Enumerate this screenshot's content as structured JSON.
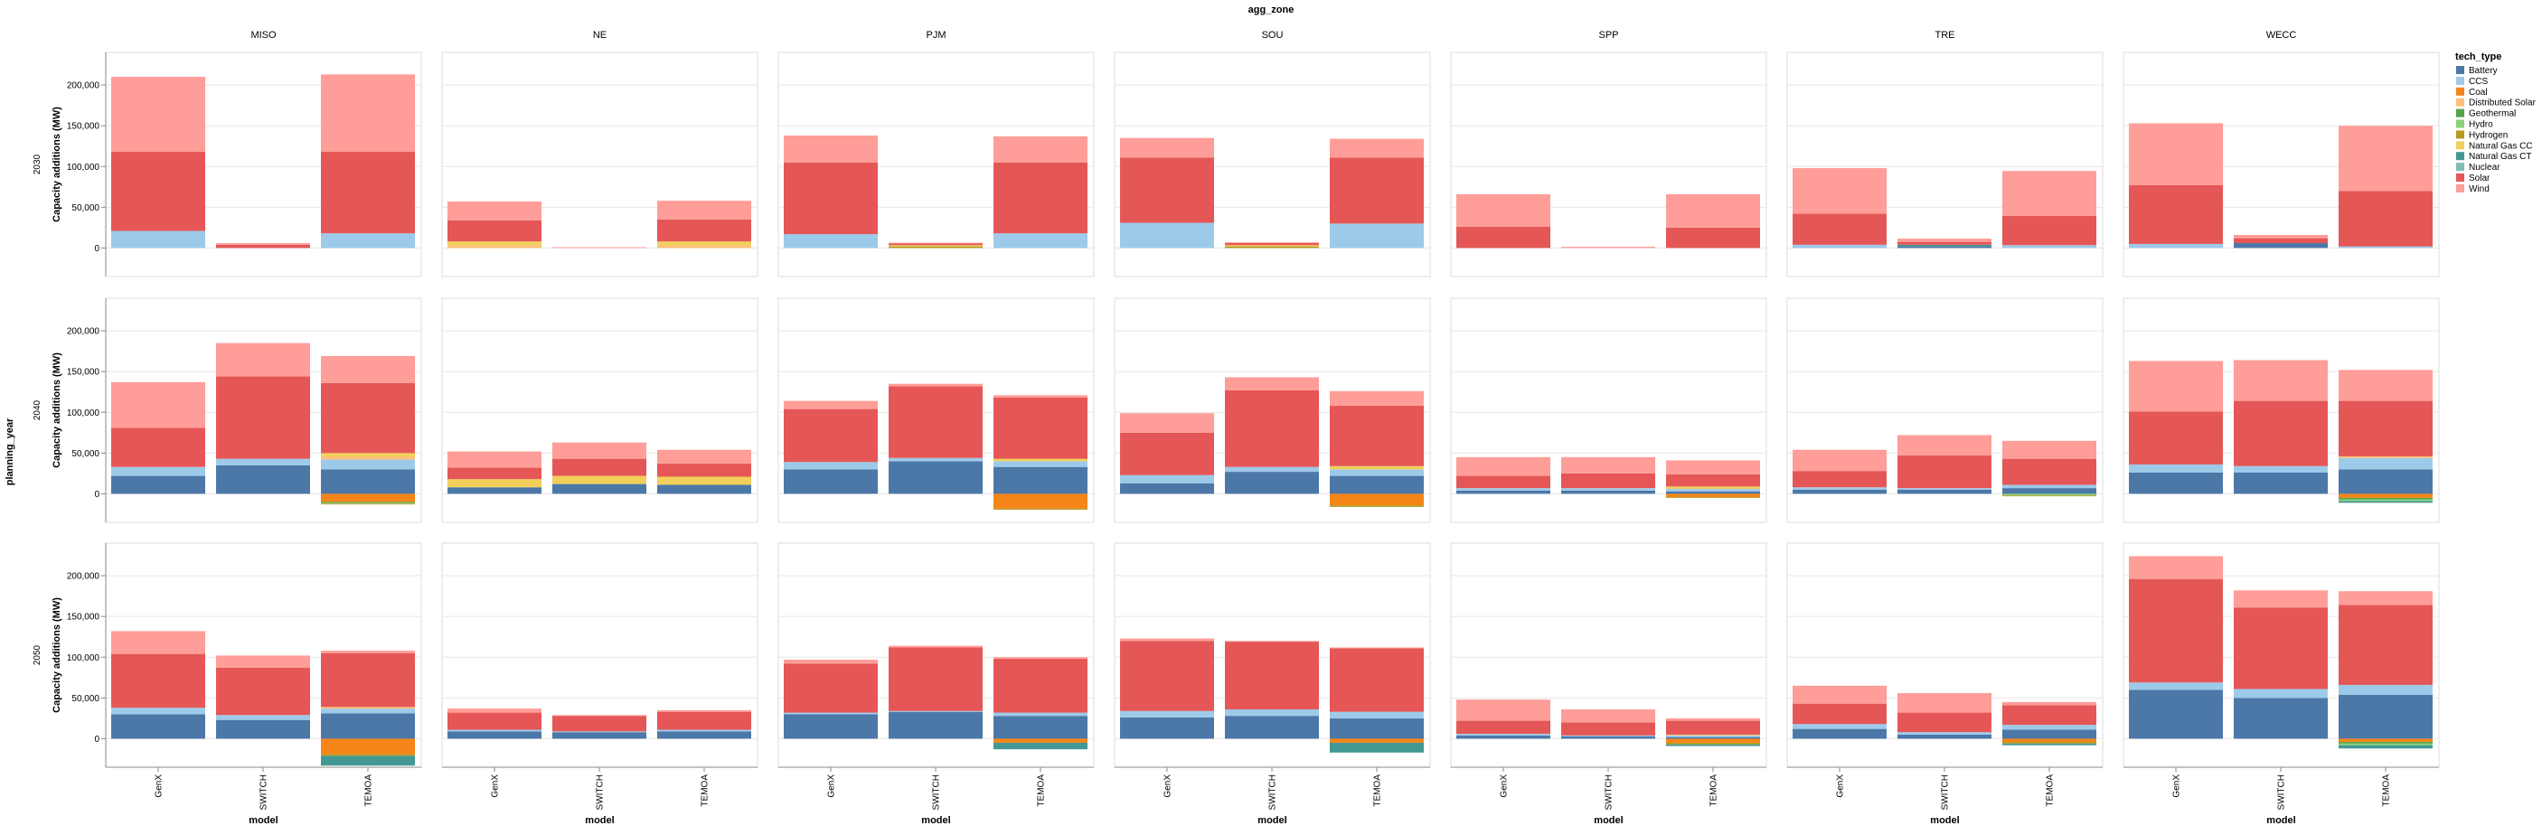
{
  "chart_data": {
    "type": "bar",
    "stacked": true,
    "facet_column_title": "agg_zone",
    "facet_row_title": "planning_year",
    "xlabel": "model",
    "ylabel": "Capacity additions (MW)",
    "ylim": [
      -35000,
      240000
    ],
    "yticks": [
      0,
      50000,
      100000,
      150000,
      200000
    ],
    "ytick_labels": [
      "0",
      "50,000",
      "100,000",
      "150,000",
      "200,000"
    ],
    "grid": true,
    "legend_placement": "right",
    "zones": [
      "MISO",
      "NE",
      "PJM",
      "SOU",
      "SPP",
      "TRE",
      "WECC"
    ],
    "years": [
      "2030",
      "2040",
      "2050"
    ],
    "models": [
      "GenX",
      "SWITCH",
      "TEMOA"
    ],
    "tech_types": [
      "Battery",
      "CCS",
      "Coal",
      "Distributed Solar",
      "Geothermal",
      "Hydro",
      "Hydrogen",
      "Natural Gas CC",
      "Natural Gas CT",
      "Nuclear",
      "Solar",
      "Wind"
    ],
    "colors": {
      "Battery": "#4c78a8",
      "CCS": "#9ecae9",
      "Coal": "#f58518",
      "Distributed Solar": "#ffbf79",
      "Geothermal": "#54a24b",
      "Hydro": "#88d27a",
      "Hydrogen": "#b79a20",
      "Natural Gas CC": "#f2cf5b",
      "Natural Gas CT": "#439894",
      "Nuclear": "#83bcb6",
      "Solar": "#e45756",
      "Wind": "#ff9d98"
    },
    "values": {
      "2030": {
        "MISO": {
          "GenX": {
            "Wind": 92000,
            "Solar": 97000,
            "CCS": 21000
          },
          "SWITCH": {
            "Wind": 2000,
            "Solar": 4000
          },
          "TEMOA": {
            "Wind": 95000,
            "Solar": 100000,
            "CCS": 18000
          }
        },
        "NE": {
          "GenX": {
            "Wind": 23000,
            "Solar": 26000,
            "Natural Gas CC": 5000,
            "Distributed Solar": 3000
          },
          "SWITCH": {
            "Wind": 1000
          },
          "TEMOA": {
            "Wind": 23000,
            "Solar": 27000,
            "Natural Gas CC": 5000,
            "Distributed Solar": 3000
          }
        },
        "PJM": {
          "GenX": {
            "Wind": 33000,
            "Solar": 88000,
            "CCS": 17000
          },
          "SWITCH": {
            "Wind": 1000,
            "Solar": 2000,
            "Hydrogen": 2000,
            "Natural Gas CC": 1500
          },
          "TEMOA": {
            "Wind": 32000,
            "Solar": 87000,
            "CCS": 18000
          }
        },
        "SOU": {
          "GenX": {
            "Wind": 24000,
            "Solar": 80000,
            "CCS": 31000
          },
          "SWITCH": {
            "Wind": 1000,
            "Solar": 2500,
            "Hydrogen": 2000,
            "Natural Gas CC": 1500
          },
          "TEMOA": {
            "Wind": 23000,
            "Solar": 81000,
            "CCS": 30000
          }
        },
        "SPP": {
          "GenX": {
            "Wind": 40000,
            "Solar": 26000
          },
          "SWITCH": {
            "Wind": 1500
          },
          "TEMOA": {
            "Wind": 41000,
            "Solar": 25000
          }
        },
        "TRE": {
          "GenX": {
            "Wind": 56000,
            "Solar": 38000,
            "CCS": 4000
          },
          "SWITCH": {
            "Wind": 4000,
            "Solar": 3500,
            "Natural Gas CT": 2000,
            "Battery": 2000
          },
          "TEMOA": {
            "Wind": 55000,
            "Solar": 36000,
            "CCS": 3500
          }
        },
        "WECC": {
          "GenX": {
            "Wind": 76000,
            "Solar": 72000,
            "CCS": 5000
          },
          "SWITCH": {
            "Wind": 4000,
            "Solar": 6000,
            "Battery": 6000
          },
          "TEMOA": {
            "Wind": 80000,
            "Solar": 68000,
            "CCS": 2000
          }
        }
      },
      "2040": {
        "MISO": {
          "GenX": {
            "Wind": 56000,
            "Solar": 48000,
            "CCS": 11000,
            "Battery": 22000
          },
          "SWITCH": {
            "Wind": 41000,
            "Solar": 101000,
            "CCS": 8000,
            "Battery": 35000
          },
          "TEMOA": {
            "Wind": 33000,
            "Solar": 86000,
            "Distributed Solar": 4000,
            "Natural Gas CC": 4000,
            "CCS": 12000,
            "Battery": 30000,
            "Hydro": -1000,
            "Geothermal": -1000,
            "Hydrogen": -1000,
            "Coal": -10000
          }
        },
        "NE": {
          "GenX": {
            "Wind": 20000,
            "Solar": 14000,
            "Natural Gas CC": 10000,
            "Battery": 8000
          },
          "SWITCH": {
            "Wind": 20000,
            "Solar": 21000,
            "Natural Gas CC": 10000,
            "Battery": 12000
          },
          "TEMOA": {
            "Wind": 17000,
            "Solar": 16000,
            "Natural Gas CC": 10000,
            "Battery": 11000
          }
        },
        "PJM": {
          "GenX": {
            "Wind": 10000,
            "Solar": 65000,
            "CCS": 9000,
            "Battery": 30000
          },
          "SWITCH": {
            "Wind": 3000,
            "Solar": 88000,
            "CCS": 4000,
            "Battery": 40000
          },
          "TEMOA": {
            "Wind": 3000,
            "Solar": 75000,
            "Natural Gas CC": 3000,
            "CCS": 7000,
            "Battery": 33000,
            "Coal": -18000,
            "Hydrogen": -1500
          }
        },
        "SOU": {
          "GenX": {
            "Wind": 24000,
            "Solar": 52000,
            "CCS": 10000,
            "Battery": 13000
          },
          "SWITCH": {
            "Wind": 16000,
            "Solar": 94000,
            "CCS": 6000,
            "Battery": 27000
          },
          "TEMOA": {
            "Wind": 18000,
            "Solar": 74000,
            "Natural Gas CC": 4000,
            "CCS": 8000,
            "Battery": 22000,
            "Coal": -14000,
            "Hydrogen": -2000
          }
        },
        "SPP": {
          "GenX": {
            "Wind": 23000,
            "Solar": 15000,
            "CCS": 3000,
            "Battery": 4000
          },
          "SWITCH": {
            "Wind": 20000,
            "Solar": 18000,
            "CCS": 3000,
            "Battery": 4000
          },
          "TEMOA": {
            "Wind": 17000,
            "Solar": 15000,
            "Natural Gas CC": 3000,
            "CCS": 3000,
            "Battery": 3000,
            "Coal": -4000,
            "Hydrogen": -1000
          }
        },
        "TRE": {
          "GenX": {
            "Wind": 26000,
            "Solar": 20000,
            "CCS": 3000,
            "Battery": 5000
          },
          "SWITCH": {
            "Wind": 25000,
            "Solar": 40000,
            "CCS": 2000,
            "Battery": 5000
          },
          "TEMOA": {
            "Wind": 22000,
            "Solar": 32000,
            "CCS": 4000,
            "Battery": 7000,
            "Hydro": -2000,
            "Hydrogen": -1000
          }
        },
        "WECC": {
          "GenX": {
            "Wind": 62000,
            "Solar": 65000,
            "CCS": 10000,
            "Battery": 26000
          },
          "SWITCH": {
            "Wind": 50000,
            "Solar": 80000,
            "CCS": 8000,
            "Battery": 26000
          },
          "TEMOA": {
            "Wind": 38000,
            "Solar": 68000,
            "Distributed Solar": 2000,
            "CCS": 14000,
            "Battery": 30000,
            "Geothermal": -2000,
            "Hydro": -2000,
            "Natural Gas CT": -2000,
            "Coal": -5000
          }
        }
      },
      "2050": {
        "MISO": {
          "GenX": {
            "Wind": 28000,
            "Solar": 66000,
            "CCS": 8000,
            "Battery": 30000
          },
          "SWITCH": {
            "Wind": 15000,
            "Solar": 58000,
            "CCS": 6000,
            "Battery": 23000
          },
          "TEMOA": {
            "Wind": 3000,
            "Solar": 66000,
            "Distributed Solar": 2000,
            "CCS": 6000,
            "Battery": 31000,
            "Natural Gas CT": -12000,
            "Hydrogen": -2000,
            "Coal": -19000
          }
        },
        "NE": {
          "GenX": {
            "Wind": 5000,
            "Solar": 21000,
            "CCS": 2000,
            "Battery": 9000
          },
          "SWITCH": {
            "Wind": 1000,
            "Solar": 19000,
            "CCS": 1000,
            "Battery": 8000
          },
          "TEMOA": {
            "Wind": 2000,
            "Solar": 22000,
            "CCS": 2000,
            "Battery": 9000
          }
        },
        "PJM": {
          "GenX": {
            "Wind": 5000,
            "Solar": 60000,
            "CCS": 2000,
            "Battery": 30000
          },
          "SWITCH": {
            "Wind": 2000,
            "Solar": 78000,
            "CCS": 1000,
            "Battery": 33000
          },
          "TEMOA": {
            "Wind": 2000,
            "Solar": 66000,
            "CCS": 4000,
            "Battery": 28000,
            "Natural Gas CT": -8000,
            "Coal": -5000
          }
        },
        "SOU": {
          "GenX": {
            "Wind": 3000,
            "Solar": 86000,
            "CCS": 8000,
            "Battery": 26000
          },
          "SWITCH": {
            "Wind": 1000,
            "Solar": 83000,
            "CCS": 8000,
            "Battery": 28000
          },
          "TEMOA": {
            "Wind": 1000,
            "Solar": 78000,
            "CCS": 8000,
            "Battery": 25000,
            "Natural Gas CT": -12000,
            "Coal": -5000
          }
        },
        "SPP": {
          "GenX": {
            "Wind": 26000,
            "Solar": 16000,
            "CCS": 2000,
            "Battery": 4000
          },
          "SWITCH": {
            "Wind": 16000,
            "Solar": 16000,
            "CCS": 1000,
            "Battery": 3000
          },
          "TEMOA": {
            "Wind": 3000,
            "Solar": 17000,
            "Distributed Solar": 1000,
            "CCS": 2000,
            "Battery": 2000,
            "Natural Gas CT": -2000,
            "Hydrogen": -2000,
            "Coal": -5000
          }
        },
        "TRE": {
          "GenX": {
            "Wind": 22000,
            "Solar": 25000,
            "CCS": 6000,
            "Battery": 12000
          },
          "SWITCH": {
            "Wind": 24000,
            "Solar": 24000,
            "CCS": 3000,
            "Battery": 5000
          },
          "TEMOA": {
            "Wind": 4000,
            "Solar": 24000,
            "CCS": 6000,
            "Battery": 11000,
            "Natural Gas CT": -2000,
            "Hydrogen": -2000,
            "Coal": -4000
          }
        },
        "WECC": {
          "GenX": {
            "Wind": 28000,
            "Solar": 127000,
            "CCS": 9000,
            "Battery": 60000
          },
          "SWITCH": {
            "Wind": 21000,
            "Solar": 100000,
            "CCS": 11000,
            "Battery": 50000
          },
          "TEMOA": {
            "Wind": 17000,
            "Solar": 98000,
            "CCS": 12000,
            "Battery": 54000,
            "Hydro": -2000,
            "Geothermal": -2000,
            "Natural Gas CT": -4000,
            "Coal": -4000
          }
        }
      }
    }
  }
}
